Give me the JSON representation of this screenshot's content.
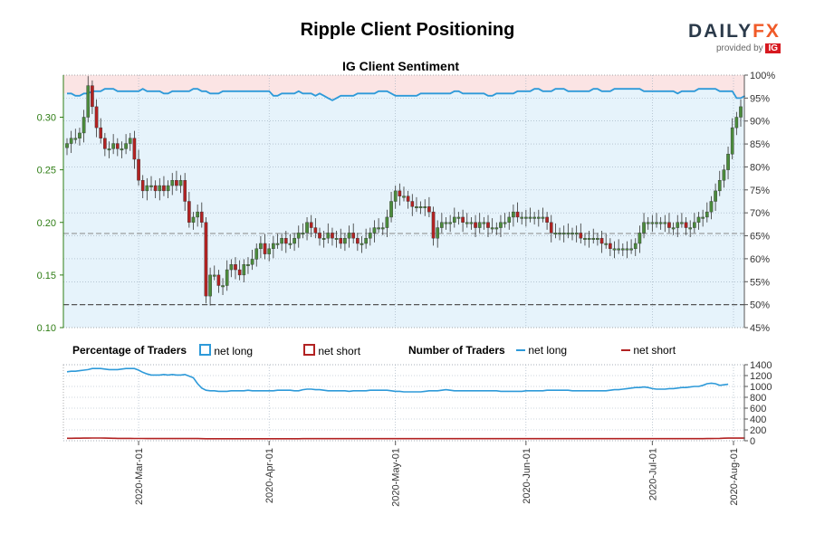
{
  "header": {
    "title": "Ripple Client Positioning",
    "subtitle": "IG Client Sentiment",
    "brand_word_left": "DAILY",
    "brand_word_right": "FX",
    "brand_provided": "provided by",
    "brand_ig": "IG"
  },
  "legend": {
    "pct_title": "Percentage of Traders",
    "pct_long": "net long",
    "pct_short": "net short",
    "num_title": "Number of Traders",
    "num_long": "net long",
    "num_short": "net short"
  },
  "colors": {
    "up_candle": "#4b8b3b",
    "down_candle": "#b22222",
    "long_line": "#2e9ad9",
    "short_line": "#b22222",
    "long_fill": "#e6f3fb",
    "short_fill": "#fbe4e4",
    "price_axis": "#2e7d14"
  },
  "chart_data": [
    {
      "type": "candlestick",
      "title": "IG Client Sentiment",
      "ylim": [
        0.1,
        0.34
      ],
      "y_ticks": [
        "0.10",
        "0.15",
        "0.20",
        "0.25",
        "0.30"
      ],
      "y2_ticks": [
        "45%",
        "50%",
        "55%",
        "60%",
        "65%",
        "70%",
        "75%",
        "80%",
        "85%",
        "90%",
        "95%",
        "100%"
      ],
      "x_ticks": [
        "2020-Mar-01",
        "2020-Apr-01",
        "2020-May-01",
        "2020-Jun-01",
        "2020-Jul-01",
        "2020-Aug-01"
      ],
      "close": [
        0.275,
        0.28,
        0.28,
        0.285,
        0.3,
        0.33,
        0.31,
        0.29,
        0.28,
        0.27,
        0.27,
        0.275,
        0.27,
        0.27,
        0.275,
        0.28,
        0.26,
        0.24,
        0.23,
        0.235,
        0.235,
        0.23,
        0.235,
        0.23,
        0.235,
        0.24,
        0.235,
        0.24,
        0.22,
        0.2,
        0.205,
        0.21,
        0.2,
        0.13,
        0.15,
        0.15,
        0.14,
        0.14,
        0.155,
        0.16,
        0.155,
        0.15,
        0.16,
        0.16,
        0.165,
        0.175,
        0.18,
        0.17,
        0.175,
        0.18,
        0.18,
        0.185,
        0.18,
        0.18,
        0.185,
        0.19,
        0.19,
        0.2,
        0.195,
        0.19,
        0.185,
        0.185,
        0.19,
        0.185,
        0.185,
        0.18,
        0.185,
        0.19,
        0.185,
        0.18,
        0.18,
        0.185,
        0.19,
        0.195,
        0.195,
        0.195,
        0.205,
        0.22,
        0.23,
        0.225,
        0.225,
        0.22,
        0.215,
        0.215,
        0.215,
        0.215,
        0.21,
        0.185,
        0.195,
        0.2,
        0.2,
        0.2,
        0.205,
        0.205,
        0.2,
        0.2,
        0.2,
        0.195,
        0.2,
        0.2,
        0.195,
        0.195,
        0.195,
        0.2,
        0.2,
        0.205,
        0.21,
        0.205,
        0.205,
        0.205,
        0.205,
        0.205,
        0.205,
        0.205,
        0.2,
        0.19,
        0.19,
        0.19,
        0.19,
        0.19,
        0.19,
        0.19,
        0.185,
        0.185,
        0.185,
        0.185,
        0.185,
        0.18,
        0.18,
        0.175,
        0.175,
        0.175,
        0.175,
        0.175,
        0.175,
        0.18,
        0.19,
        0.2,
        0.2,
        0.2,
        0.2,
        0.2,
        0.2,
        0.195,
        0.195,
        0.2,
        0.2,
        0.195,
        0.195,
        0.2,
        0.205,
        0.205,
        0.21,
        0.22,
        0.23,
        0.24,
        0.25,
        0.265,
        0.29,
        0.3,
        0.31
      ],
      "sentiment_long_pct": [
        96,
        96,
        95.5,
        95.5,
        96,
        96,
        96.5,
        96.5,
        96.5,
        97,
        97,
        97,
        96.5,
        96.5,
        96.5,
        96.5,
        96.5,
        96.5,
        97,
        96.5,
        96.5,
        96.5,
        96.5,
        96,
        96,
        96.5,
        96.5,
        96.5,
        96.5,
        96.5,
        97,
        97,
        96.5,
        96.5,
        96,
        96,
        96,
        96.5,
        96.5,
        96.5,
        96.5,
        96.5,
        96.5,
        96.5,
        96.5,
        96.5,
        96.5,
        96.5,
        96.5,
        95.5,
        95.5,
        96,
        96,
        96,
        96,
        96.5,
        96,
        96,
        96,
        95.5,
        96,
        95.5,
        95,
        94.5,
        95,
        95.5,
        95.5,
        95.5,
        95.5,
        96,
        96,
        96,
        96,
        96,
        96.5,
        96.5,
        96.5,
        96,
        95.5,
        95.5,
        95.5,
        95.5,
        95.5,
        95.5,
        96,
        96,
        96,
        96,
        96,
        96,
        96,
        96,
        96.5,
        96.5,
        96,
        96,
        96,
        96,
        96,
        96,
        95.5,
        95.5,
        96,
        96,
        96,
        96,
        96,
        96.5,
        96.5,
        96.5,
        96.5,
        97,
        97,
        96.5,
        96.5,
        96.5,
        97,
        97,
        97,
        96.5,
        96.5,
        96.5,
        96.5,
        96.5,
        96.5,
        97,
        97,
        96.5,
        96.5,
        96.5,
        97,
        97,
        97,
        97,
        97,
        97,
        97,
        96.5,
        96.5,
        96.5,
        96.5,
        96.5,
        96.5,
        96.5,
        96.5,
        96,
        96.5,
        96.5,
        96.5,
        96.5,
        97,
        97,
        97,
        97,
        97,
        96.5,
        96.5,
        96.5,
        96.5,
        95,
        95,
        95.5
      ]
    },
    {
      "type": "line",
      "title": "Number of Traders",
      "ylim": [
        0,
        1400
      ],
      "y_ticks": [
        "0",
        "200",
        "400",
        "600",
        "800",
        "1000",
        "1200",
        "1400"
      ],
      "series": [
        {
          "name": "net long",
          "values": [
            1270,
            1280,
            1280,
            1290,
            1300,
            1310,
            1330,
            1330,
            1330,
            1320,
            1310,
            1310,
            1310,
            1320,
            1330,
            1330,
            1330,
            1300,
            1260,
            1230,
            1210,
            1210,
            1210,
            1220,
            1210,
            1220,
            1210,
            1210,
            1220,
            1190,
            1160,
            1050,
            970,
            930,
            920,
            920,
            910,
            910,
            910,
            920,
            920,
            920,
            920,
            930,
            920,
            920,
            920,
            920,
            920,
            920,
            930,
            930,
            930,
            930,
            920,
            920,
            940,
            950,
            950,
            940,
            940,
            930,
            920,
            920,
            920,
            920,
            920,
            910,
            920,
            920,
            920,
            920,
            930,
            930,
            930,
            930,
            930,
            920,
            910,
            910,
            900,
            900,
            900,
            900,
            900,
            910,
            920,
            920,
            920,
            930,
            940,
            930,
            920,
            920,
            920,
            920,
            920,
            920,
            920,
            920,
            920,
            920,
            920,
            910,
            910,
            910,
            910,
            910,
            910,
            920,
            920,
            920,
            920,
            920,
            930,
            930,
            930,
            930,
            930,
            930,
            920,
            920,
            920,
            920,
            920,
            920,
            920,
            920,
            920,
            930,
            940,
            940,
            950,
            960,
            970,
            980,
            980,
            990,
            980,
            960,
            950,
            950,
            950,
            960,
            960,
            970,
            980,
            980,
            990,
            1000,
            1000,
            1020,
            1050,
            1060,
            1050,
            1020,
            1030,
            1040
          ]
        },
        {
          "name": "net short",
          "values": [
            45,
            45,
            46,
            47,
            48,
            49,
            50,
            50,
            50,
            48,
            46,
            45,
            44,
            44,
            43,
            43,
            42,
            42,
            41,
            40,
            40,
            40,
            40,
            40,
            40,
            40,
            40,
            40,
            40,
            40,
            40,
            40,
            38,
            37,
            36,
            36,
            36,
            36,
            36,
            36,
            36,
            36,
            36,
            36,
            36,
            36,
            36,
            36,
            36,
            36,
            36,
            36,
            36,
            36,
            36,
            36,
            38,
            38,
            38,
            38,
            38,
            38,
            38,
            38,
            38,
            38,
            38,
            38,
            38,
            38,
            38,
            38,
            38,
            38,
            38,
            38,
            38,
            38,
            38,
            38,
            38,
            38,
            38,
            38,
            38,
            38,
            38,
            38,
            38,
            38,
            38,
            38,
            38,
            38,
            38,
            38,
            38,
            38,
            38,
            38,
            38,
            38,
            38,
            38,
            38,
            38,
            38,
            38,
            38,
            38,
            38,
            38,
            38,
            38,
            38,
            38,
            38,
            38,
            38,
            38,
            38,
            38,
            38,
            38,
            38,
            38,
            38,
            38,
            38,
            38,
            38,
            38,
            38,
            38,
            38,
            38,
            38,
            38,
            38,
            38,
            38,
            38,
            38,
            38,
            38,
            38,
            38,
            38,
            38,
            38,
            38,
            38,
            40,
            40,
            42,
            44,
            46,
            48,
            48,
            48,
            48,
            48
          ]
        }
      ]
    }
  ]
}
